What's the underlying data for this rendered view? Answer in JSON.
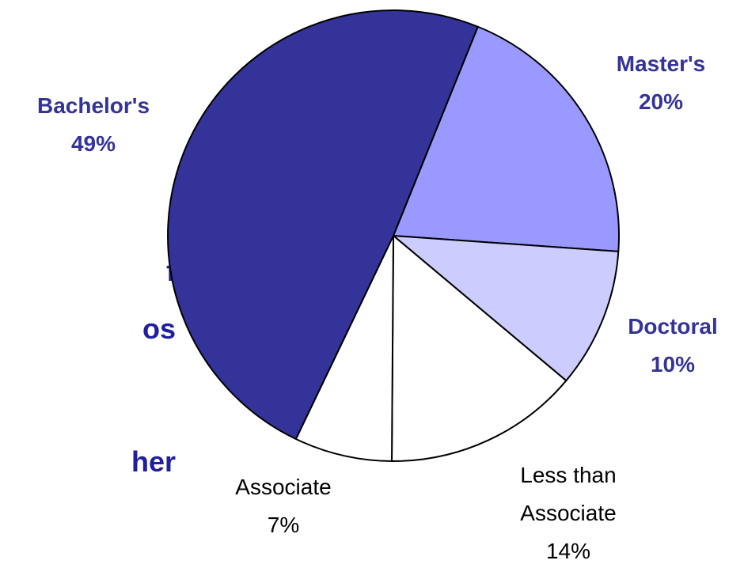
{
  "fragments": [
    "f",
    "os",
    "her"
  ],
  "chart_data": {
    "type": "pie",
    "start_angle_deg": 68,
    "direction": "clockwise",
    "slices": [
      {
        "label": "Master's",
        "value": 20,
        "value_label": "20%",
        "color": "#9999ff",
        "label_style": "bold",
        "label_color": "#333399"
      },
      {
        "label": "Doctoral",
        "value": 10,
        "value_label": "10%",
        "color": "#ccccff",
        "label_style": "bold",
        "label_color": "#333399"
      },
      {
        "label": "Less than Associate",
        "label_lines": [
          "Less than",
          "Associate"
        ],
        "value": 14,
        "value_label": "14%",
        "color": "#ffffff",
        "label_style": "normal",
        "label_color": "#000000"
      },
      {
        "label": "Associate",
        "value": 7,
        "value_label": "7%",
        "color": "#ffffff",
        "label_style": "normal",
        "label_color": "#000000"
      },
      {
        "label": "Bachelor's",
        "value": 49,
        "value_label": "49%",
        "color": "#333399",
        "label_style": "bold",
        "label_color": "#333399"
      }
    ]
  }
}
